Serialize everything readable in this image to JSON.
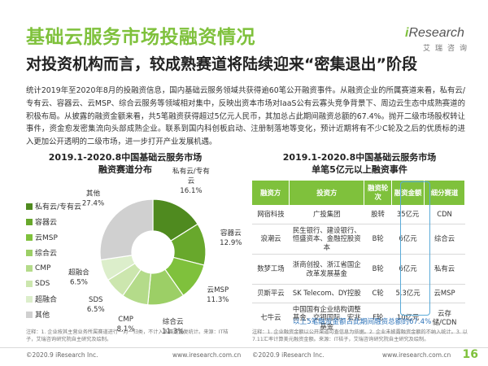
{
  "header": {
    "title": "基础云服务市场投融资情况",
    "subtitle": "对投资机构而言，较成熟赛道将陆续迎来“密集退出”阶段"
  },
  "logo": {
    "brand_i": "i",
    "brand_rest": "Research",
    "sub": "艾瑞咨询"
  },
  "body": {
    "paragraph": "统计2019年至2020年8月的投融资信息，国内基础云服务领域共获得逾60笔公开融资事件。从融资企业的所属赛道来看，私有云/专有云、容器云、云MSP、综合云服务等领域相对集中，反映出资本市场对IaaS公有云寡头竞争背景下、周边云生态中成熟赛道的积极布局。从披露的融资金额来看，共5笔融资获得超过5亿元人民币，其加总占此期间融资总额的67.4%。抛开二级市场股权转让事件，资金愈发密集流向头部成熟企业。联系到国内科创板启动、注册制落地等变化，预计近期将有不少C轮及之后的优质标的进入更加公开透明的二级市场，进一步打开产业发展机遇。"
  },
  "chart_data": [
    {
      "type": "pie",
      "title": "2019.1-2020.8中国基础云服务市场\n融资赛道分布",
      "title_line1": "2019.1-2020.8中国基础云服务市场",
      "title_line2": "融资赛道分布",
      "slices": [
        {
          "name": "私有云/专有云",
          "label_line1": "私有云/专有",
          "label_line2": "云",
          "value": 16.1,
          "color": "#4f8a1f"
        },
        {
          "name": "容器云",
          "label_line1": "容器云",
          "label_line2": "",
          "value": 12.9,
          "color": "#68a82c"
        },
        {
          "name": "云MSP",
          "label_line1": "云MSP",
          "label_line2": "",
          "value": 11.3,
          "color": "#7fc13c"
        },
        {
          "name": "综合云",
          "label_line1": "综合云",
          "label_line2": "",
          "value": 11.3,
          "color": "#9ccf66"
        },
        {
          "name": "CMP",
          "label_line1": "CMP",
          "label_line2": "",
          "value": 8.1,
          "color": "#b4db8a"
        },
        {
          "name": "SDS",
          "label_line1": "SDS",
          "label_line2": "",
          "value": 6.5,
          "color": "#cce6ae"
        },
        {
          "name": "超融合",
          "label_line1": "超融合",
          "label_line2": "",
          "value": 6.5,
          "color": "#dceecb"
        },
        {
          "name": "其他",
          "label_line1": "其他",
          "label_line2": "",
          "value": 27.4,
          "color": "#d0d0d0"
        }
      ],
      "value_suffix": "%"
    },
    {
      "type": "table",
      "title_line1": "2019.1-2020.8中国基础云服务市场",
      "title_line2": "单笔5亿元以上融资事件",
      "columns": [
        "融资方",
        "投资方",
        "融资轮次",
        "融资金额",
        "细分赛道"
      ],
      "rows": [
        {
          "company": "网宿科技",
          "investor": "广投集团",
          "round": "股转",
          "amount": "35亿元",
          "segment": "CDN"
        },
        {
          "company": "浪潮云",
          "investor": "民生银行、建设银行、恒盛资本、金融控股资本",
          "round": "B轮",
          "amount": "6亿元",
          "segment": "综合云"
        },
        {
          "company": "数梦工场",
          "investor": "浙商创投、浙江省国企改革发展基金",
          "round": "B轮",
          "amount": "6亿元",
          "segment": "私有云"
        },
        {
          "company": "贝斯平云",
          "investor": "SK Telecom、DY控股",
          "round": "C轮",
          "amount": "5.3亿元",
          "segment": "云MSP"
        },
        {
          "company": "七牛云",
          "investor": "中国国有企业结构调整基金、交银国际、宏兆基金",
          "round": "F轮",
          "amount": "10亿元",
          "segment": "云存储/CDN"
        }
      ],
      "highlight_note": "以上5笔融资金额占此期间融资总额的67.4%"
    }
  ],
  "legend_title_hidden": "",
  "notes": {
    "left": "注释：1. 企业按其主营业务所属赛道进行一对一归类，不计入多赛道重复统计。来源：IT桔子，艾瑞咨询研究院自主研究及绘制。",
    "right": "注释：1. 企业融资金额以公开渠道可查信息为依据。2. 企业未披露融资金额的不纳入统计。3. 以7.11汇率计算美元融资金额。来源：IT桔子，艾瑞咨询研究院自主研究及绘制。"
  },
  "footer": {
    "copyright_left": "©2020.9 iResearch Inc.",
    "url_left": "www.iresearch.com.cn",
    "copyright_right": "©2020.9 iResearch Inc.",
    "url_right": "www.iresearch.com.cn",
    "page_number": "16"
  },
  "colors": {
    "accent": "#7fc13c",
    "highlight_border": "#5aaad8",
    "highlight_text": "#2e73b8"
  }
}
